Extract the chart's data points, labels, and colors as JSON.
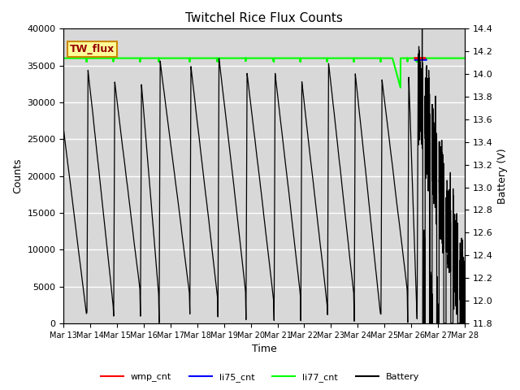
{
  "title": "Twitchel Rice Flux Counts",
  "ylabel_left": "Counts",
  "ylabel_right": "Battery (V)",
  "xlabel": "Time",
  "ylim_left": [
    0,
    40000
  ],
  "ylim_right": [
    11.8,
    14.4
  ],
  "plot_bg_color": "#d8d8d8",
  "fig_bg_color": "white",
  "box_label": "TW_flux",
  "box_facecolor": "#ffff99",
  "box_edgecolor": "#cc8800",
  "box_textcolor": "#990000",
  "yticks_left": [
    0,
    5000,
    10000,
    15000,
    20000,
    25000,
    30000,
    35000,
    40000
  ],
  "yticks_right": [
    11.8,
    12.0,
    12.2,
    12.4,
    12.6,
    12.8,
    13.0,
    13.2,
    13.4,
    13.6,
    13.8,
    14.0,
    14.2,
    14.4
  ],
  "num_days": 15,
  "li77_value": 36000,
  "grid_color": "white",
  "grid_alpha": 1.0
}
